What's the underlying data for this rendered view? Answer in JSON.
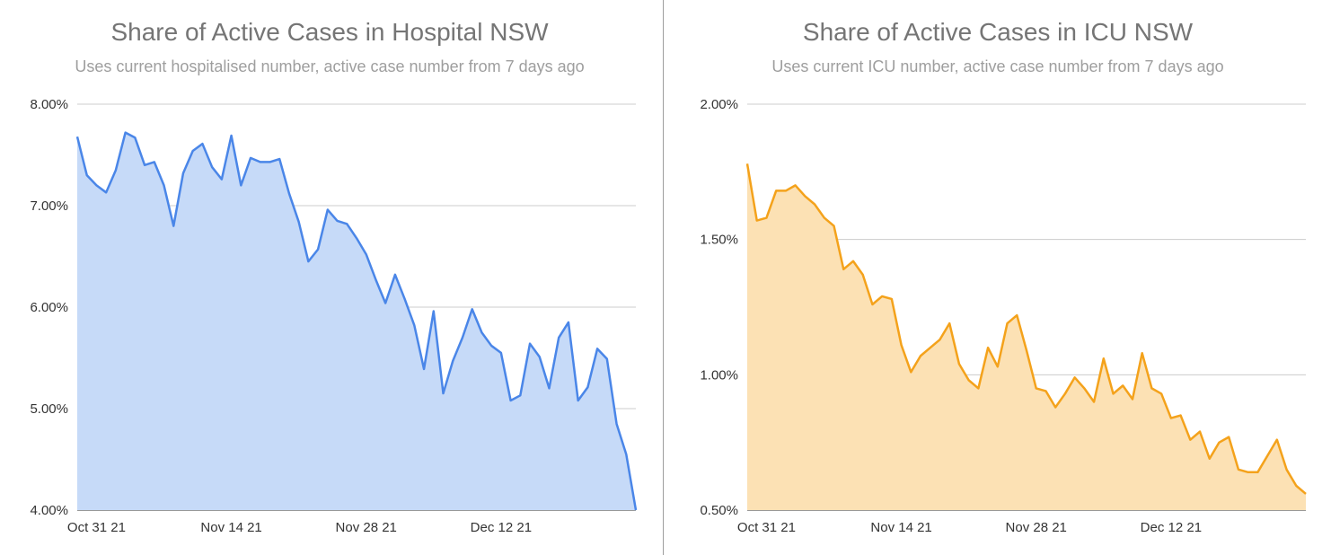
{
  "colors": {
    "hospital_line": "#4a86e8",
    "hospital_fill": "#c6daf8",
    "icu_line": "#f4a21b",
    "icu_fill": "#fce1b4",
    "grid": "#cccccc",
    "title": "#757575",
    "subtitle": "#9e9e9e"
  },
  "chart_data": [
    {
      "type": "area",
      "title": "Share of Active Cases in Hospital NSW",
      "subtitle": "Uses current hospitalised number, active case number from 7 days ago",
      "xlabel": "",
      "ylabel": "",
      "ylim": [
        4.0,
        8.0
      ],
      "yticks": [
        4.0,
        5.0,
        6.0,
        7.0,
        8.0
      ],
      "ytick_labels": [
        "4.00%",
        "5.00%",
        "6.00%",
        "7.00%",
        "8.00%"
      ],
      "x_start_label": "Oct 29 21",
      "x_count": 59,
      "xticks": [
        {
          "index": 2,
          "label": "Oct 31 21"
        },
        {
          "index": 16,
          "label": "Nov 14 21"
        },
        {
          "index": 30,
          "label": "Nov 28 21"
        },
        {
          "index": 44,
          "label": "Dec 12 21"
        }
      ],
      "series": [
        {
          "name": "Share of Active Cases in Hospital",
          "values": [
            7.68,
            7.3,
            7.2,
            7.13,
            7.35,
            7.72,
            7.67,
            7.4,
            7.43,
            7.2,
            6.8,
            7.32,
            7.54,
            7.61,
            7.38,
            7.26,
            7.69,
            7.2,
            7.47,
            7.43,
            7.43,
            7.46,
            7.12,
            6.84,
            6.45,
            6.57,
            6.96,
            6.85,
            6.82,
            6.68,
            6.52,
            6.27,
            6.04,
            6.32,
            6.08,
            5.82,
            5.39,
            5.96,
            5.15,
            5.47,
            5.7,
            5.98,
            5.75,
            5.62,
            5.55,
            5.08,
            5.13,
            5.64,
            5.51,
            5.2,
            5.7,
            5.85,
            5.08,
            5.21,
            5.59,
            5.49,
            4.85,
            4.55,
            4.0
          ]
        }
      ]
    },
    {
      "type": "area",
      "title": "Share of Active Cases in ICU NSW",
      "subtitle": "Uses current ICU number, active case number from 7 days ago",
      "xlabel": "",
      "ylabel": "",
      "ylim": [
        0.5,
        2.0
      ],
      "yticks": [
        0.5,
        1.0,
        1.5,
        2.0
      ],
      "ytick_labels": [
        "0.50%",
        "1.00%",
        "1.50%",
        "2.00%"
      ],
      "x_start_label": "Oct 29 21",
      "x_count": 59,
      "xticks": [
        {
          "index": 2,
          "label": "Oct 31 21"
        },
        {
          "index": 16,
          "label": "Nov 14 21"
        },
        {
          "index": 30,
          "label": "Nov 28 21"
        },
        {
          "index": 44,
          "label": "Dec 12 21"
        }
      ],
      "series": [
        {
          "name": "Share of Active Cases in ICU",
          "values": [
            1.78,
            1.57,
            1.58,
            1.68,
            1.68,
            1.7,
            1.66,
            1.63,
            1.58,
            1.55,
            1.39,
            1.42,
            1.37,
            1.26,
            1.29,
            1.28,
            1.11,
            1.01,
            1.07,
            1.1,
            1.13,
            1.19,
            1.04,
            0.98,
            0.95,
            1.1,
            1.03,
            1.19,
            1.22,
            1.09,
            0.95,
            0.94,
            0.88,
            0.93,
            0.99,
            0.95,
            0.9,
            1.06,
            0.93,
            0.96,
            0.91,
            1.08,
            0.95,
            0.93,
            0.84,
            0.85,
            0.76,
            0.79,
            0.69,
            0.75,
            0.77,
            0.65,
            0.64,
            0.64,
            0.7,
            0.76,
            0.65,
            0.59,
            0.56
          ]
        }
      ]
    }
  ]
}
